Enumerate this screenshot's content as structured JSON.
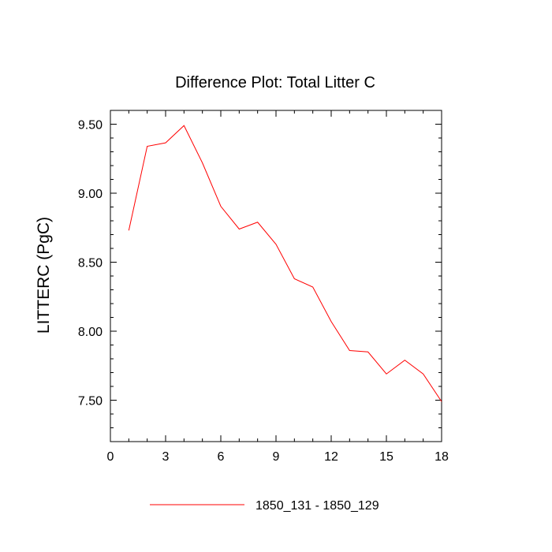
{
  "chart_data": {
    "type": "line",
    "title": "Difference Plot: Total Litter C",
    "xlabel": "",
    "ylabel": "LITTERC  (PgC)",
    "xlim": [
      0,
      18
    ],
    "ylim": [
      7.2,
      9.6
    ],
    "x_ticks": [
      0,
      3,
      6,
      9,
      12,
      15,
      18
    ],
    "x_tick_labels": [
      "0",
      "3",
      "6",
      "9",
      "12",
      "15",
      "18"
    ],
    "y_ticks": [
      7.5,
      8.0,
      8.5,
      9.0,
      9.5
    ],
    "y_tick_labels": [
      "7.50",
      "8.00",
      "8.50",
      "9.00",
      "9.50"
    ],
    "grid": false,
    "legend_position": "bottom",
    "series": [
      {
        "name": "1850_131 - 1850_129",
        "color": "#ff0000",
        "x": [
          1,
          2,
          3,
          4,
          5,
          6,
          7,
          8,
          9,
          10,
          11,
          12,
          13,
          14,
          15,
          16,
          17,
          18
        ],
        "y": [
          8.73,
          9.34,
          9.365,
          9.49,
          9.22,
          8.905,
          8.74,
          8.79,
          8.63,
          8.38,
          8.32,
          8.07,
          7.86,
          7.85,
          7.69,
          7.79,
          7.69,
          7.49
        ]
      }
    ]
  }
}
